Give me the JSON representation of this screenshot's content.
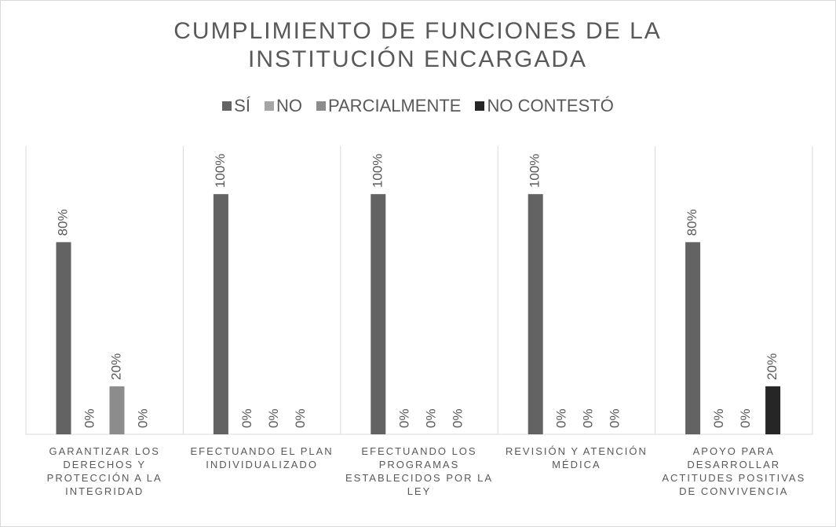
{
  "chart_data": {
    "type": "bar",
    "title": "CUMPLIMIENTO DE FUNCIONES DE LA INSTITUCIÓN ENCARGADA",
    "categories": [
      "GARANTIZAR LOS DERECHOS Y PROTECCIÓN A LA INTEGRIDAD",
      "EFECTUANDO EL PLAN INDIVIDUALIZADO",
      "EFECTUANDO LOS PROGRAMAS ESTABLECIDOS POR LA LEY",
      "REVISIÓN Y ATENCIÓN MÉDICA",
      "APOYO PARA DESARROLLAR ACTITUDES POSITIVAS DE CONVIVENCIA"
    ],
    "series": [
      {
        "name": "SÍ",
        "color": "#636363",
        "values": [
          80,
          100,
          100,
          100,
          80
        ],
        "value_labels": [
          "80%",
          "100%",
          "100%",
          "100%",
          "80%"
        ]
      },
      {
        "name": "NO",
        "color": "#a5a5a5",
        "values": [
          0,
          0,
          0,
          0,
          0
        ],
        "value_labels": [
          "0%",
          "0%",
          "0%",
          "0%",
          "0%"
        ]
      },
      {
        "name": "PARCIALMENTE",
        "color": "#8c8c8c",
        "values": [
          20,
          0,
          0,
          0,
          0
        ],
        "value_labels": [
          "20%",
          "0%",
          "0%",
          "0%",
          "0%"
        ]
      },
      {
        "name": "NO CONTESTÓ",
        "color": "#262626",
        "values": [
          0,
          0,
          0,
          0,
          20
        ],
        "value_labels": [
          "0%",
          "0%",
          "0%",
          "0%",
          "20%"
        ]
      }
    ],
    "ylim": [
      0,
      120
    ],
    "legend": "top"
  }
}
